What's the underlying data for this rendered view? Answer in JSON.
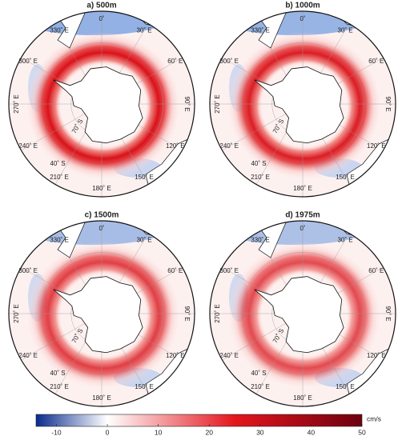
{
  "panels": [
    {
      "title": "a) 500m"
    },
    {
      "title": "b) 1000m"
    },
    {
      "title": "c) 1500m"
    },
    {
      "title": "d) 1975m"
    }
  ],
  "lon_labels": [
    "0˚",
    "30˚ E",
    "60˚ E",
    "90˚ E",
    "120˚ E",
    "150˚ E",
    "180˚ E",
    "210˚ E",
    "240˚ E",
    "270˚ E",
    "300˚ E",
    "330˚ E"
  ],
  "lat_labels": [
    "40˚ S",
    "70˚ S"
  ],
  "colorbar": {
    "lim": [
      -14,
      50
    ],
    "ticks": [
      -10,
      0,
      10,
      20,
      30,
      40,
      50
    ],
    "unit": "cm/s",
    "colors": [
      "#0a2a8c",
      "#ffffff",
      "#e3161d",
      "#6e0010"
    ]
  }
}
